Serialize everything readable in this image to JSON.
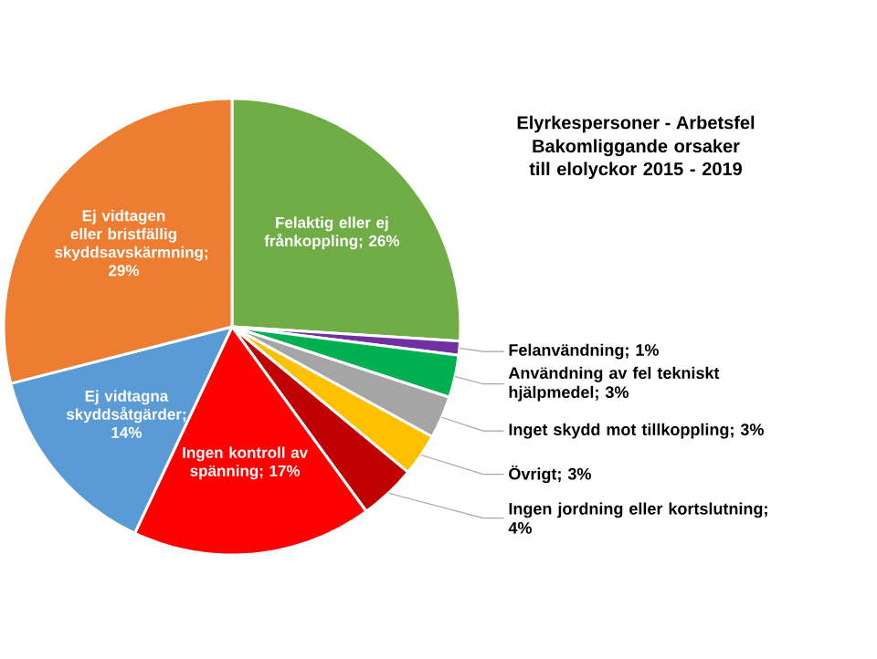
{
  "chart_data": {
    "type": "pie",
    "title": "Elyrkespersoner - Arbetsfel",
    "subtitle": "Bakomliggande orsaker till elolyckor 2015 - 2019",
    "categories": [
      "Felaktig eller ej frånkoppling",
      "Felanvändning",
      "Användning av fel tekniskt hjälpmedel",
      "Inget skydd mot tillkoppling",
      "Övrigt",
      "Ingen jordning eller kortslutning",
      "Ingen kontroll av spänning",
      "Ej vidtagna skyddsåtgärder",
      "Ej vidtagen eller bristfällig skyddsavskärmning"
    ],
    "values": [
      26,
      1,
      3,
      3,
      3,
      4,
      17,
      14,
      29
    ],
    "colors": [
      "#70ad47",
      "#7030a0",
      "#00b050",
      "#a5a5a5",
      "#ffc000",
      "#c00000",
      "#ff0000",
      "#5b9bd5",
      "#ed7d31"
    ],
    "value_labels": [
      "; 26%",
      "; 1%",
      "; 3%",
      "; 3%",
      "; 3%",
      "; 4%",
      "; 17%",
      "; 14%",
      "; 29%"
    ]
  }
}
